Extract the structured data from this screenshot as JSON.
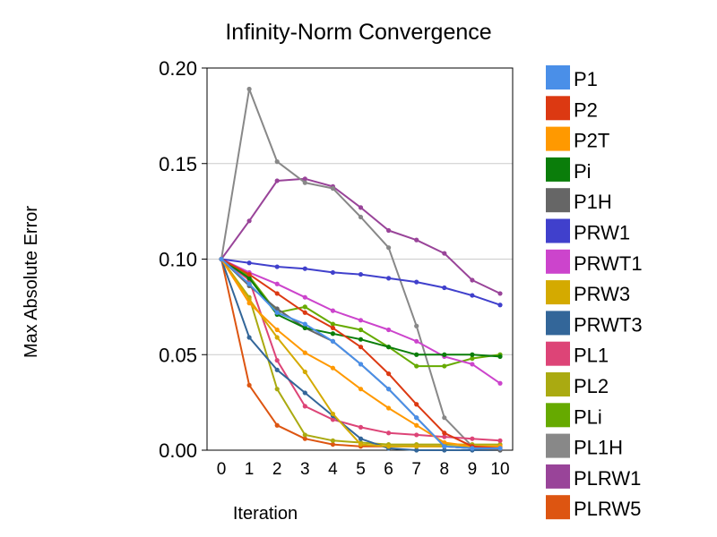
{
  "chart_data": {
    "type": "line",
    "title": "Infinity-Norm Convergence",
    "xlabel": "Iteration",
    "ylabel": "Max Absolute Error",
    "x": [
      0,
      1,
      2,
      3,
      4,
      5,
      6,
      7,
      8,
      9,
      10
    ],
    "xlim": [
      0,
      10
    ],
    "ylim": [
      0,
      0.2
    ],
    "y_ticks": [
      "0.00",
      "0.05",
      "0.10",
      "0.15",
      "0.20"
    ],
    "x_ticks": [
      "0",
      "1",
      "2",
      "3",
      "4",
      "5",
      "6",
      "7",
      "8",
      "9",
      "10"
    ],
    "grid": true,
    "legend_position": "right",
    "series": [
      {
        "name": "P1",
        "color": "#4a8fe8",
        "values": [
          0.1,
          0.087,
          0.072,
          0.066,
          0.057,
          0.045,
          0.032,
          0.017,
          0.002,
          0.001,
          0.001
        ]
      },
      {
        "name": "P2",
        "color": "#dc3912",
        "values": [
          0.1,
          0.092,
          0.082,
          0.072,
          0.064,
          0.054,
          0.04,
          0.024,
          0.009,
          0.002,
          0.001
        ]
      },
      {
        "name": "P2T",
        "color": "#ff9900",
        "values": [
          0.1,
          0.077,
          0.063,
          0.051,
          0.043,
          0.032,
          0.022,
          0.013,
          0.004,
          0.002,
          0.002
        ]
      },
      {
        "name": "Pi",
        "color": "#0a7d0a",
        "values": [
          0.1,
          0.09,
          0.071,
          0.064,
          0.061,
          0.058,
          0.054,
          0.05,
          0.05,
          0.05,
          0.049
        ]
      },
      {
        "name": "P1H",
        "color": "#666666",
        "values": [
          0.1,
          0.086,
          0.074,
          0.064,
          0.057,
          0.045,
          0.032,
          0.017,
          0.002,
          0.001,
          0.0
        ]
      },
      {
        "name": "PRW1",
        "color": "#4040cc",
        "values": [
          0.1,
          0.098,
          0.096,
          0.095,
          0.093,
          0.092,
          0.09,
          0.088,
          0.085,
          0.081,
          0.076
        ]
      },
      {
        "name": "PRWT1",
        "color": "#cc44cc",
        "values": [
          0.1,
          0.093,
          0.087,
          0.08,
          0.073,
          0.068,
          0.063,
          0.057,
          0.049,
          0.045,
          0.035
        ]
      },
      {
        "name": "PRW3",
        "color": "#d4aa00",
        "values": [
          0.1,
          0.079,
          0.059,
          0.041,
          0.019,
          0.003,
          0.002,
          0.002,
          0.002,
          0.002,
          0.002
        ]
      },
      {
        "name": "PRWT3",
        "color": "#336699",
        "values": [
          0.1,
          0.059,
          0.042,
          0.03,
          0.018,
          0.006,
          0.001,
          0.0,
          0.0,
          0.0,
          0.0
        ]
      },
      {
        "name": "PL1",
        "color": "#dd4477",
        "values": [
          0.1,
          0.089,
          0.047,
          0.023,
          0.016,
          0.012,
          0.009,
          0.008,
          0.007,
          0.006,
          0.005
        ]
      },
      {
        "name": "PL2",
        "color": "#aaaa11",
        "values": [
          0.1,
          0.08,
          0.032,
          0.008,
          0.005,
          0.004,
          0.003,
          0.003,
          0.003,
          0.003,
          0.003
        ]
      },
      {
        "name": "PLi",
        "color": "#66aa00",
        "values": [
          0.1,
          0.091,
          0.072,
          0.075,
          0.066,
          0.063,
          0.054,
          0.044,
          0.044,
          0.048,
          0.05
        ]
      },
      {
        "name": "PL1H",
        "color": "#888888",
        "values": [
          0.1,
          0.189,
          0.151,
          0.14,
          0.137,
          0.122,
          0.106,
          0.065,
          0.017,
          0.002,
          0.001
        ]
      },
      {
        "name": "PLRW1",
        "color": "#994499",
        "values": [
          0.1,
          0.12,
          0.141,
          0.142,
          0.138,
          0.127,
          0.115,
          0.11,
          0.103,
          0.089,
          0.082
        ]
      },
      {
        "name": "PLRW5",
        "color": "#dd5511",
        "values": [
          0.1,
          0.034,
          0.013,
          0.006,
          0.003,
          0.002,
          0.002,
          0.002,
          0.002,
          0.001,
          0.001
        ]
      }
    ]
  }
}
